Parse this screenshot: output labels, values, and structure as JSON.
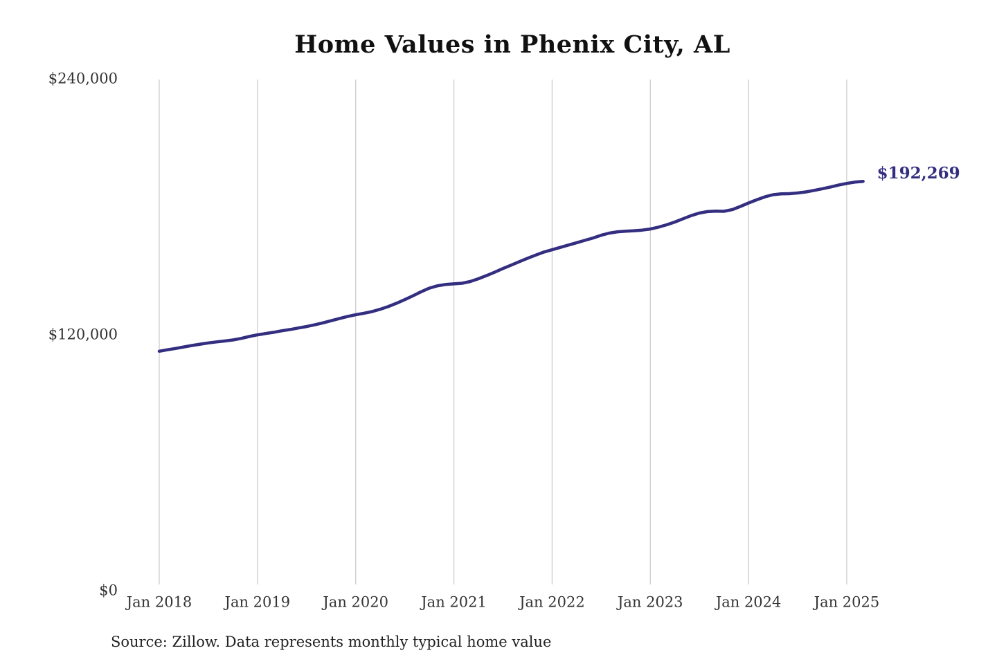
{
  "title": "Home Values in Phenix City, AL",
  "source_note": "Source: Zillow. Data represents monthly typical home value",
  "colors": {
    "line": "#332e80",
    "final_label": "#332e80",
    "grid": "#c9c9c9",
    "axis_text": "#333333",
    "title_text": "#111111",
    "source_text": "#222222",
    "background": "#ffffff"
  },
  "chart_data": {
    "type": "line",
    "title": "Home Values in Phenix City, AL",
    "xlabel": "",
    "ylabel": "",
    "frequency": "monthly",
    "x_start": "Jan 2018",
    "x_end": "Mar 2025",
    "x_tick_labels": [
      "Jan 2018",
      "Jan 2019",
      "Jan 2020",
      "Jan 2021",
      "Jan 2022",
      "Jan 2023",
      "Jan 2024",
      "Jan 2025"
    ],
    "y_ticks": [
      {
        "label": "$0",
        "value": 0
      },
      {
        "label": "$120,000",
        "value": 120000
      },
      {
        "label": "$240,000",
        "value": 240000
      }
    ],
    "ylim": [
      0,
      240000
    ],
    "grid": "vertical-only",
    "legend": "none",
    "final_value": 192269,
    "final_value_label": "$192,269",
    "series": [
      {
        "name": "Typical home value",
        "values": [
          112600,
          113300,
          113900,
          114600,
          115300,
          115900,
          116500,
          117000,
          117400,
          117900,
          118600,
          119500,
          120300,
          120900,
          121500,
          122200,
          122800,
          123500,
          124200,
          125000,
          125900,
          126900,
          127900,
          128900,
          129700,
          130400,
          131200,
          132300,
          133600,
          135100,
          136800,
          138600,
          140500,
          142200,
          143300,
          143900,
          144200,
          144500,
          145300,
          146600,
          148100,
          149700,
          151400,
          153000,
          154600,
          156200,
          157700,
          159100,
          160200,
          161300,
          162400,
          163500,
          164600,
          165700,
          167000,
          168000,
          168600,
          168900,
          169100,
          169400,
          169900,
          170800,
          171900,
          173200,
          174700,
          176200,
          177400,
          178100,
          178300,
          178200,
          179000,
          180500,
          182100,
          183600,
          185000,
          186000,
          186400,
          186500,
          186800,
          187300,
          188000,
          188800,
          189600,
          190500,
          191300,
          191900,
          192269
        ]
      }
    ]
  }
}
